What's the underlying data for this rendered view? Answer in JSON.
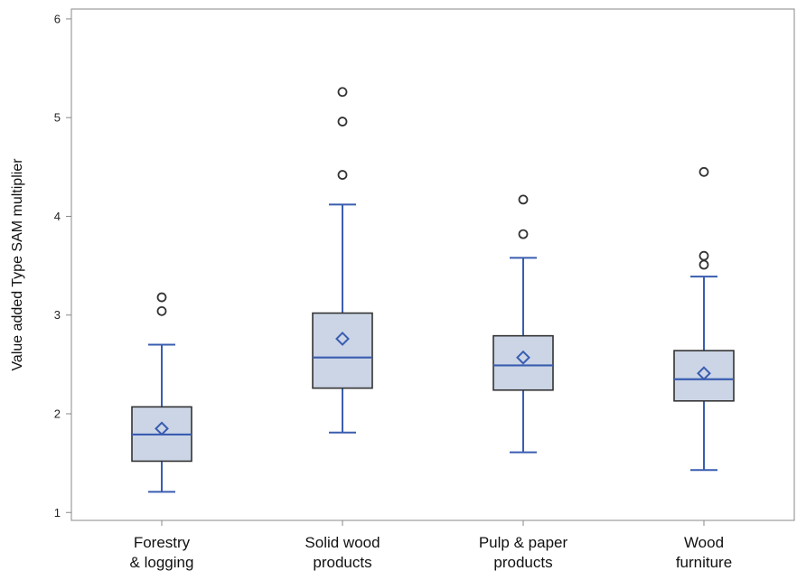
{
  "chart_data": {
    "type": "box",
    "ylabel": "Value added Type SAM  multiplier",
    "xlabel": "",
    "ylim": [
      0.92,
      6.1
    ],
    "yticks": [
      "1",
      "2",
      "3",
      "4",
      "5",
      "6"
    ],
    "grid": false,
    "legend": "none",
    "colors": {
      "box_fill": "#cbd5e6",
      "box_stroke": "#333333",
      "whisker": "#3a5db0",
      "median": "#3a5db0",
      "mean": "#3a5db0",
      "outlier": "#333333",
      "axis": "#888888"
    },
    "categories": [
      {
        "label_lines": [
          "Forestry",
          "& logging"
        ],
        "whisker_low": 1.21,
        "q1": 1.52,
        "median": 1.79,
        "q3": 2.07,
        "whisker_high": 2.7,
        "mean": 1.85,
        "outliers": [
          3.04,
          3.18
        ]
      },
      {
        "label_lines": [
          "Solid wood",
          "products"
        ],
        "whisker_low": 1.81,
        "q1": 2.26,
        "median": 2.57,
        "q3": 3.02,
        "whisker_high": 4.12,
        "mean": 2.76,
        "outliers": [
          4.42,
          4.96,
          5.26
        ]
      },
      {
        "label_lines": [
          "Pulp & paper",
          "products"
        ],
        "whisker_low": 1.61,
        "q1": 2.24,
        "median": 2.49,
        "q3": 2.79,
        "whisker_high": 3.58,
        "mean": 2.57,
        "outliers": [
          3.82,
          4.17
        ]
      },
      {
        "label_lines": [
          "Wood",
          "furniture"
        ],
        "whisker_low": 1.43,
        "q1": 2.13,
        "median": 2.35,
        "q3": 2.64,
        "whisker_high": 3.39,
        "mean": 2.41,
        "outliers": [
          3.51,
          3.6,
          4.45
        ]
      }
    ]
  }
}
